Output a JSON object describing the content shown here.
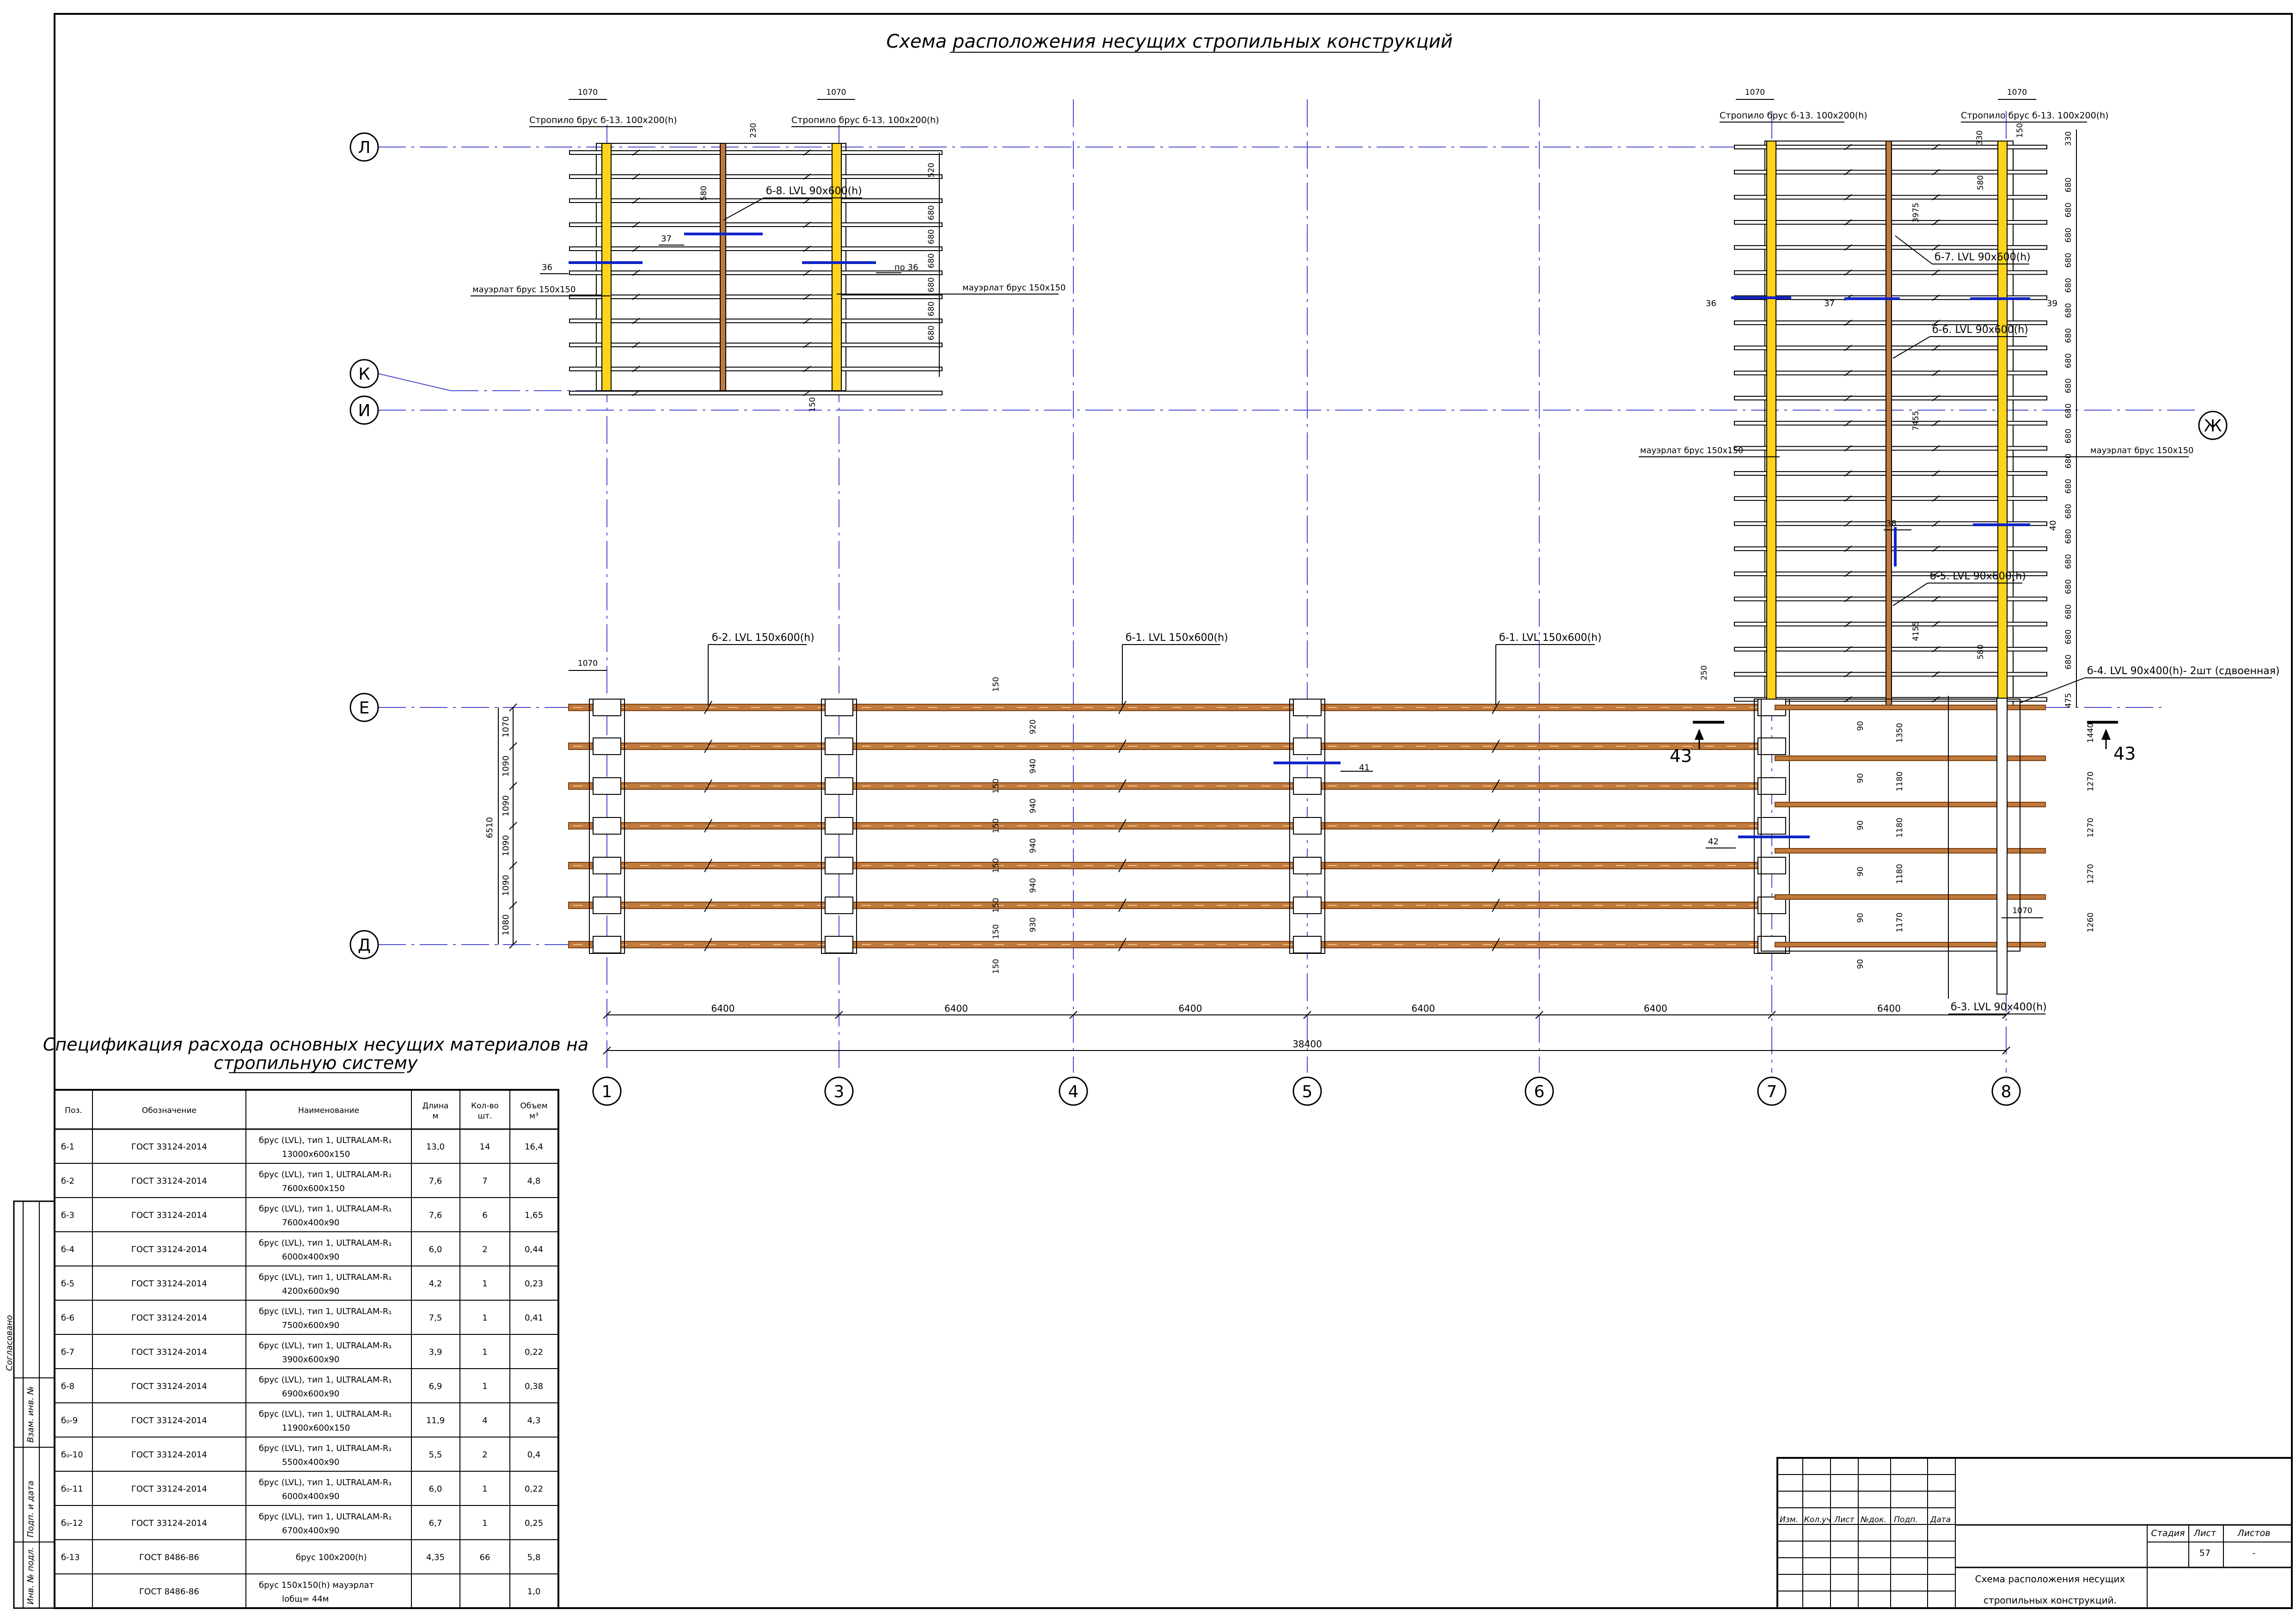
{
  "title": "Схема расположения несущих стропильных конструкций",
  "axes": {
    "vertical": [
      "1",
      "3",
      "4",
      "5",
      "6",
      "7",
      "8"
    ],
    "horizontal": [
      "Л",
      "К",
      "И",
      "Е",
      "Д"
    ],
    "right": "Ж"
  },
  "dimensions": {
    "spans": [
      "6400",
      "6400",
      "6400",
      "6400",
      "6400",
      "6400"
    ],
    "total": "38400",
    "left_total": "6510",
    "left_rows": [
      "1070",
      "1090",
      "1090",
      "1090",
      "1090",
      "1080"
    ],
    "top_1070": "1070",
    "top_230": "230",
    "top_150": "150",
    "d680": "680",
    "d520": "520",
    "d580": "580",
    "d330": "330",
    "d150": "150",
    "d475": "475",
    "d250": "250",
    "d3975": "3975",
    "d7455": "7455",
    "d4155": "4155",
    "d1440": "1440",
    "d1350": "1350",
    "d1180": "1180",
    "d1170": "1170",
    "d1270": "1270",
    "d1260": "1260",
    "d90": "90",
    "d920": "920",
    "d940": "940",
    "d930": "930"
  },
  "labels": {
    "rafter_left": "Стропило брус б-13. 100х200(h)",
    "rafter_right": "Стропило брус б-13. 100х200(h)",
    "b8": "б-8. LVL 90х600(h)",
    "b7": "б-7. LVL 90х600(h)",
    "b6": "б-6. LVL 90х600(h)",
    "b5": "б-5. LVL 90х600(h)",
    "b4": "б-4. LVL 90х400(h)- 2шт (сдвоенная)",
    "b3": "б-3. LVL 90х400(h)",
    "b2": "б-2. LVL 150х600(h)",
    "b1a": "б-1. LVL 150х600(h)",
    "b1b": "б-1. LVL 150х600(h)",
    "mauerlat": "мауэрлат брус 150х150",
    "n36": "36",
    "n37": "37",
    "po36": "по 36",
    "n38": "38",
    "n39": "39",
    "n40": "40",
    "n41": "41",
    "n42": "42",
    "n43": "43"
  },
  "spec": {
    "title_line1": "Спецификация расхода основных несущих материалов на",
    "title_line2": "стропильную систему",
    "headers": {
      "pos": "Поз.",
      "des": "Обозначение",
      "name": "Наименование",
      "len1": "Длина",
      "len2": "м",
      "qty1": "Кол-во",
      "qty2": "шт.",
      "vol1": "Объем",
      "vol2": "м³"
    },
    "rows": [
      {
        "pos": "б-1",
        "des": "ГОСТ 33124-2014",
        "n1": "брус (LVL), тип 1, ULTRALAM-R₁",
        "n2": "13000х600х150",
        "len": "13,0",
        "qty": "14",
        "vol": "16,4"
      },
      {
        "pos": "б-2",
        "des": "ГОСТ 33124-2014",
        "n1": "брус (LVL), тип 1, ULTRALAM-R₁",
        "n2": "7600х600х150",
        "len": "7,6",
        "qty": "7",
        "vol": "4,8"
      },
      {
        "pos": "б-3",
        "des": "ГОСТ 33124-2014",
        "n1": "брус (LVL), тип 1, ULTRALAM-R₁",
        "n2": "7600х400х90",
        "len": "7,6",
        "qty": "6",
        "vol": "1,65"
      },
      {
        "pos": "б-4",
        "des": "ГОСТ 33124-2014",
        "n1": "брус (LVL), тип 1, ULTRALAM-R₁",
        "n2": "6000х400х90",
        "len": "6,0",
        "qty": "2",
        "vol": "0,44"
      },
      {
        "pos": "б-5",
        "des": "ГОСТ 33124-2014",
        "n1": "брус (LVL), тип 1, ULTRALAM-R₁",
        "n2": "4200х600х90",
        "len": "4,2",
        "qty": "1",
        "vol": "0,23"
      },
      {
        "pos": "б-6",
        "des": "ГОСТ 33124-2014",
        "n1": "брус (LVL), тип 1, ULTRALAM-R₁",
        "n2": "7500х600х90",
        "len": "7,5",
        "qty": "1",
        "vol": "0,41"
      },
      {
        "pos": "б-7",
        "des": "ГОСТ 33124-2014",
        "n1": "брус (LVL), тип 1, ULTRALAM-R₁",
        "n2": "3900х600х90",
        "len": "3,9",
        "qty": "1",
        "vol": "0,22"
      },
      {
        "pos": "б-8",
        "des": "ГОСТ 33124-2014",
        "n1": "брус (LVL), тип 1, ULTRALAM-R₁",
        "n2": "6900х600х90",
        "len": "6,9",
        "qty": "1",
        "vol": "0,38"
      },
      {
        "pos": "б₀-9",
        "des": "ГОСТ 33124-2014",
        "n1": "брус (LVL), тип 1, ULTRALAM-R₁",
        "n2": "11900х600х150",
        "len": "11,9",
        "qty": "4",
        "vol": "4,3"
      },
      {
        "pos": "б₀-10",
        "des": "ГОСТ 33124-2014",
        "n1": "брус (LVL), тип 1, ULTRALAM-R₁",
        "n2": "5500х400х90",
        "len": "5,5",
        "qty": "2",
        "vol": "0,4"
      },
      {
        "pos": "б₀-11",
        "des": "ГОСТ 33124-2014",
        "n1": "брус (LVL), тип 1, ULTRALAM-R₁",
        "n2": "6000х400х90",
        "len": "6,0",
        "qty": "1",
        "vol": "0,22"
      },
      {
        "pos": "б₀-12",
        "des": "ГОСТ 33124-2014",
        "n1": "брус (LVL), тип 1, ULTRALAM-R₁",
        "n2": "6700х400х90",
        "len": "6,7",
        "qty": "1",
        "vol": "0,25"
      },
      {
        "pos": "б-13",
        "des": "ГОСТ 8486-86",
        "n1": "брус 100х200(h)",
        "n2": "",
        "len": "4,35",
        "qty": "66",
        "vol": "5,8"
      },
      {
        "pos": "",
        "des": "ГОСТ 8486-86",
        "n1": "брус 150х150(h) мауэрлат",
        "n2": "lобщ= 44м",
        "len": "",
        "qty": "",
        "vol": "1,0"
      }
    ]
  },
  "stamp": {
    "izm": "Изм.",
    "kol": "Кол.уч",
    "list": "Лист",
    "ndok": "№док.",
    "podp": "Подп.",
    "data": "Дата",
    "stadia": "Стадия",
    "list2": "Лист",
    "listov": "Листов",
    "sheet_no": "57",
    "sheets": "-",
    "title_line1": "Схема расположения несущих",
    "title_line2": "стропильных конструкций."
  },
  "side": {
    "s1": "Согласовано",
    "s2": "Взам. инв. №",
    "s3": "Подп. и дата",
    "s4": "Инв. № подл."
  },
  "colors": {
    "axis": "#4b4bd0",
    "beam": "#c07a3c",
    "beam_dark": "#7a3f12",
    "yellow": "#ffd21c",
    "mark": "#1024c8",
    "line": "#000000"
  }
}
